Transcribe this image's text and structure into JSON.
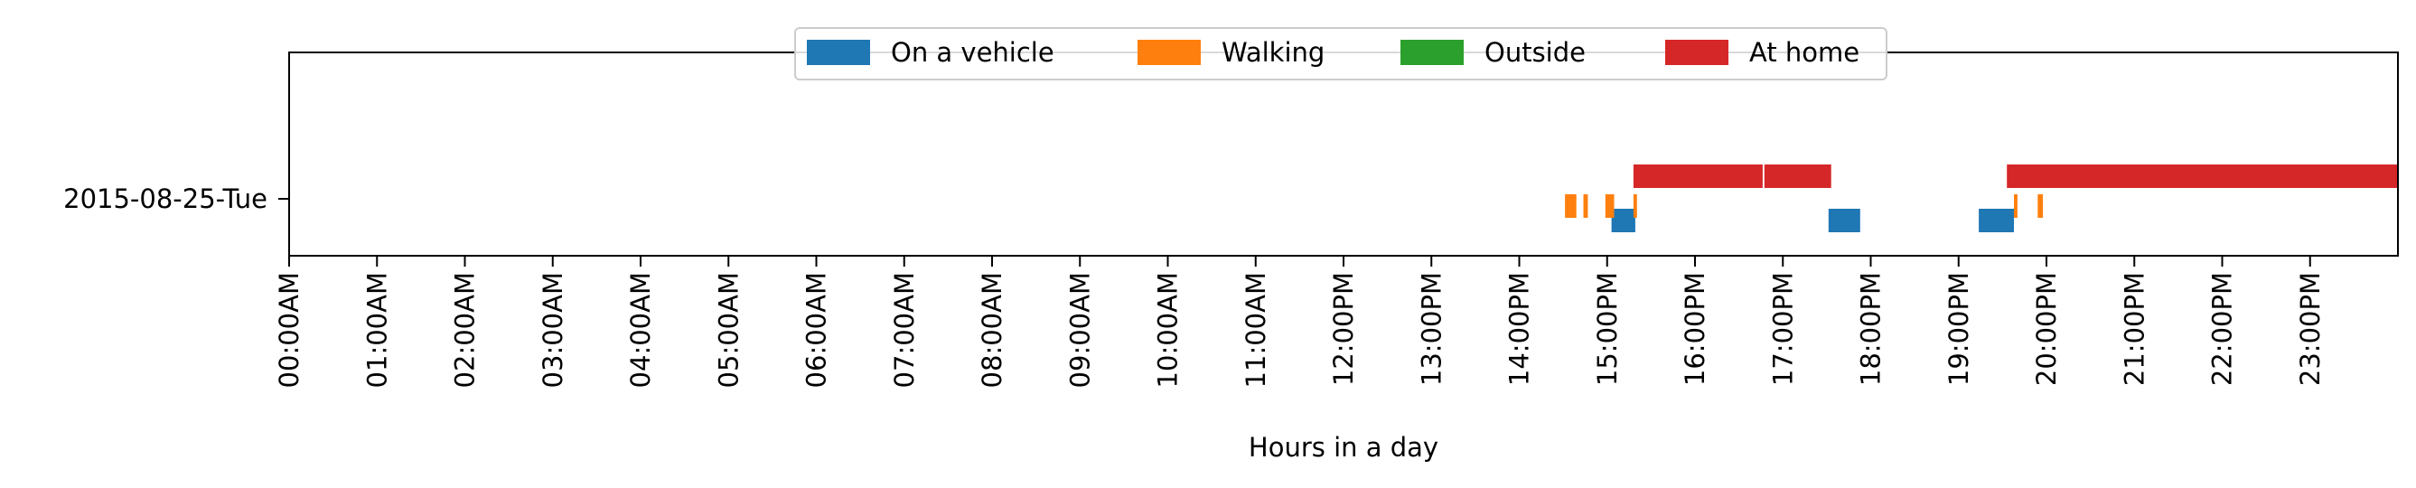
{
  "chart_data": {
    "type": "timeline",
    "title": "",
    "xlabel": "Hours in a day",
    "ylabel": "",
    "xlim": [
      0,
      24
    ],
    "rows": [
      "2015-08-25-Tue"
    ],
    "xtick_values": [
      0,
      1,
      2,
      3,
      4,
      5,
      6,
      7,
      8,
      9,
      10,
      11,
      12,
      13,
      14,
      15,
      16,
      17,
      18,
      19,
      20,
      21,
      22,
      23
    ],
    "xtick_labels": [
      "00:00AM",
      "01:00AM",
      "02:00AM",
      "03:00AM",
      "04:00AM",
      "05:00AM",
      "06:00AM",
      "07:00AM",
      "08:00AM",
      "09:00AM",
      "10:00AM",
      "11:00AM",
      "12:00PM",
      "13:00PM",
      "14:00PM",
      "15:00PM",
      "16:00PM",
      "17:00PM",
      "18:00PM",
      "19:00PM",
      "20:00PM",
      "21:00PM",
      "22:00PM",
      "23:00PM"
    ],
    "legend_position": "top-center",
    "grid": false,
    "series": [
      {
        "name": "On a vehicle",
        "color": "#1f77b4",
        "intervals": [
          [
            15.05,
            15.32
          ],
          [
            17.52,
            17.88
          ],
          [
            19.23,
            19.63
          ]
        ]
      },
      {
        "name": "Walking",
        "color": "#ff7f0e",
        "intervals": [
          [
            14.52,
            14.65
          ],
          [
            14.73,
            14.78
          ],
          [
            14.98,
            15.08
          ],
          [
            15.3,
            15.34
          ],
          [
            19.63,
            19.67
          ],
          [
            19.9,
            19.96
          ]
        ]
      },
      {
        "name": "Outside",
        "color": "#2ca02c",
        "intervals": []
      },
      {
        "name": "At home",
        "color": "#d62728",
        "intervals": [
          [
            15.3,
            16.77
          ],
          [
            16.79,
            17.55
          ],
          [
            19.55,
            24.0
          ]
        ]
      }
    ]
  }
}
